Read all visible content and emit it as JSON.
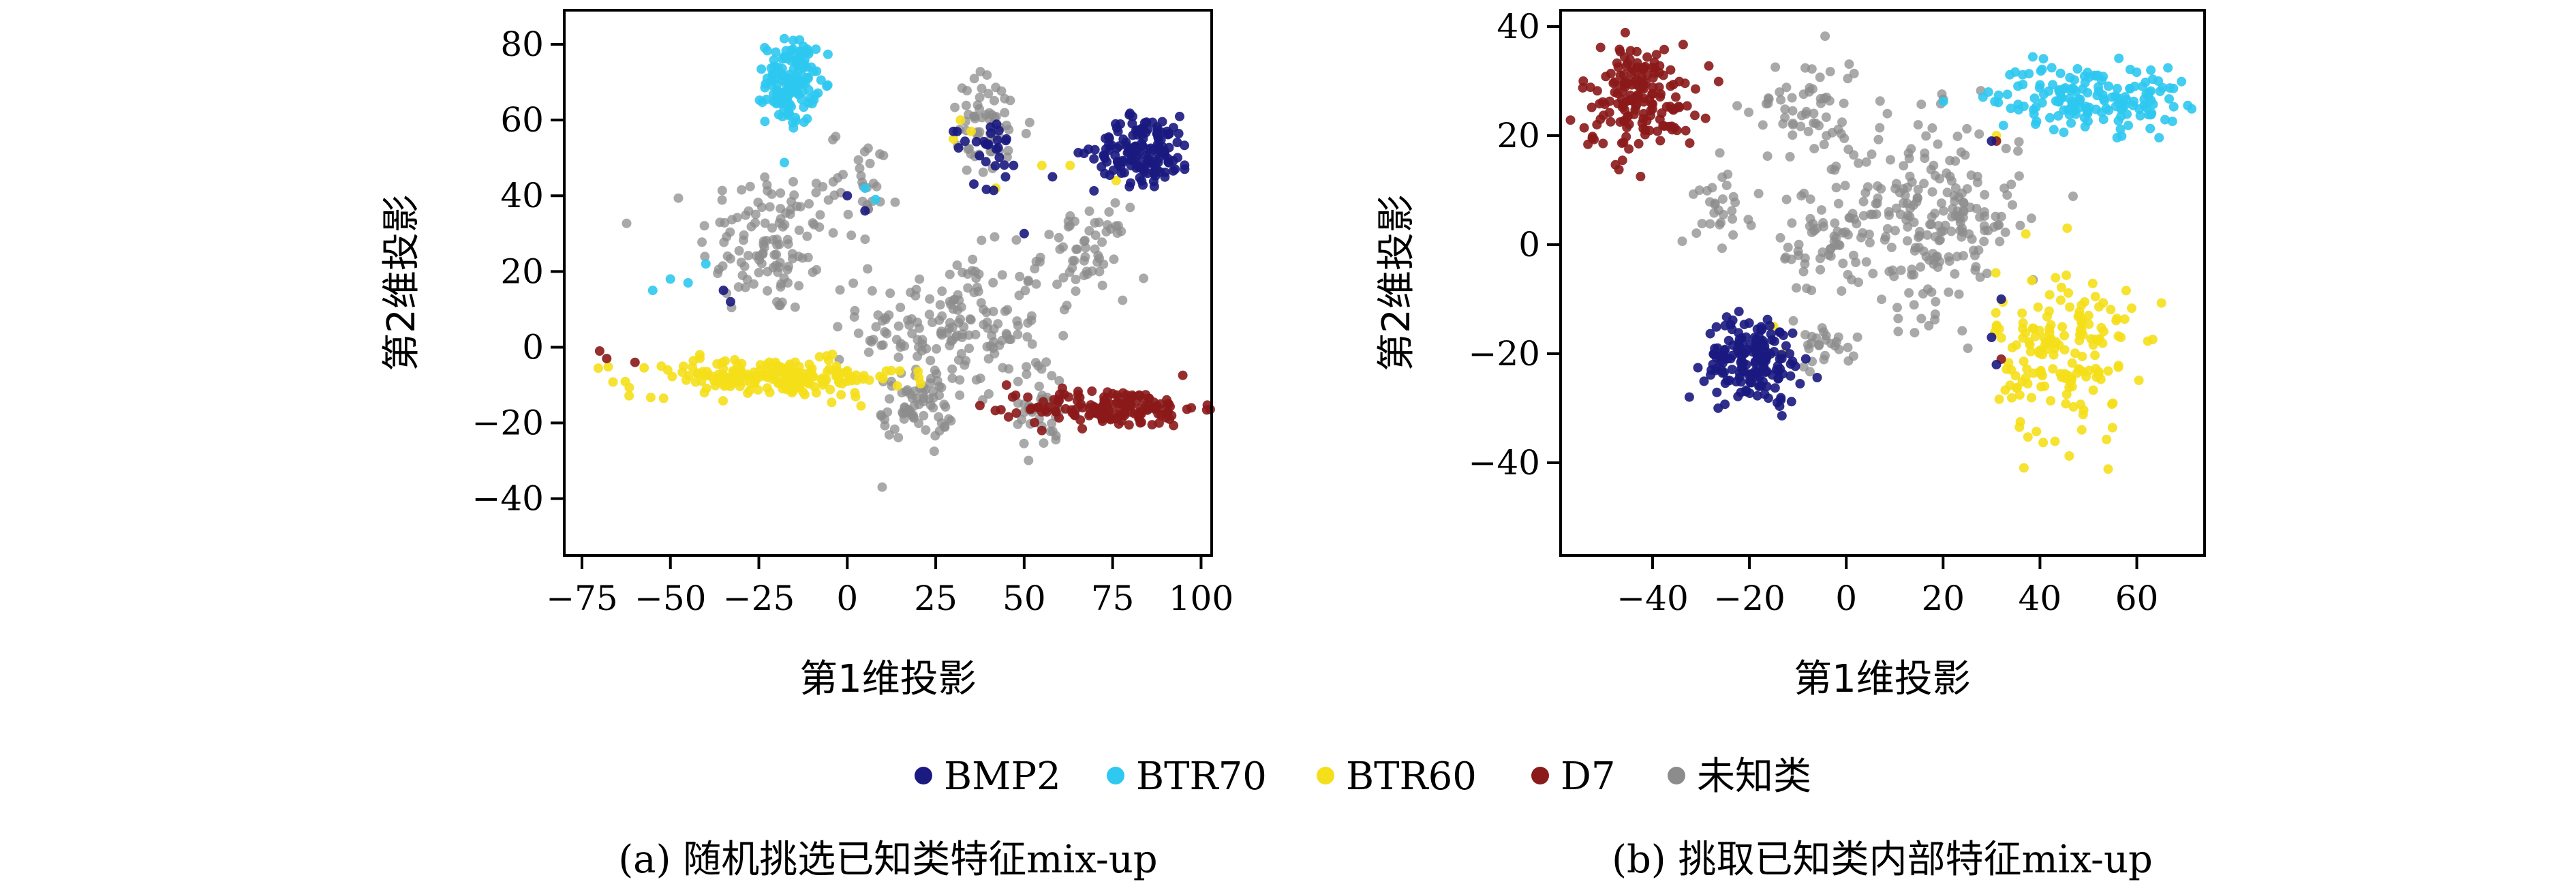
{
  "legend": [
    {
      "label": "BMP2",
      "color": "#1a1a80"
    },
    {
      "label": "BTR70",
      "color": "#2ec8f0"
    },
    {
      "label": "BTR60",
      "color": "#f5df1a"
    },
    {
      "label": "D7",
      "color": "#8b1a1a"
    },
    {
      "label": "未知类",
      "color": "#8c8c8c"
    }
  ],
  "chart_data": [
    {
      "type": "scatter",
      "caption": "(a) 随机挑选已知类特征mix-up",
      "xlabel": "第1维投影",
      "ylabel": "第2维投影",
      "xlim": [
        -80,
        103
      ],
      "ylim": [
        -55,
        89
      ],
      "xticks": [
        -75,
        -50,
        -25,
        0,
        25,
        50,
        75,
        100
      ],
      "yticks": [
        -40,
        -20,
        0,
        20,
        40,
        60,
        80
      ],
      "grid": false,
      "series": [
        {
          "name": "BMP2",
          "clusters": [
            {
              "cx": 84,
              "cy": 52,
              "sx": 7,
              "sy": 4.5,
              "n": 150
            },
            {
              "cx": 40,
              "cy": 53,
              "sx": 5,
              "sy": 5,
              "n": 25
            }
          ],
          "x": [
            -35,
            -33,
            0,
            5,
            30,
            45,
            47,
            50,
            58
          ],
          "y": [
            15,
            12,
            40,
            36,
            57,
            55,
            48,
            30,
            45
          ]
        },
        {
          "name": "BTR70",
          "clusters": [
            {
              "cx": -16,
              "cy": 70,
              "sx": 3.5,
              "sy": 5.5,
              "n": 140
            }
          ],
          "x": [
            -55,
            -50,
            -45,
            -40,
            5,
            8
          ],
          "y": [
            15,
            18,
            17,
            22,
            42,
            39
          ]
        },
        {
          "name": "BTR60",
          "clusters": [
            {
              "cx": -22,
              "cy": -8,
              "sx": 19,
              "sy": 2.5,
              "n": 200
            }
          ],
          "x": [
            32,
            35,
            42,
            55,
            63,
            76,
            30
          ],
          "y": [
            60,
            57,
            42,
            48,
            48,
            44,
            55
          ]
        },
        {
          "name": "D7",
          "clusters": [
            {
              "cx": 75,
              "cy": -16,
              "sx": 12,
              "sy": 2.5,
              "n": 160
            }
          ],
          "x": [
            -70,
            -68,
            -60,
            55,
            45
          ],
          "y": [
            -1,
            -3,
            -4,
            -22,
            -10
          ]
        },
        {
          "name": "未知类",
          "clusters": [
            {
              "cx": -22,
              "cy": 28,
              "sx": 10,
              "sy": 10,
              "n": 120
            },
            {
              "cx": 30,
              "cy": 5,
              "sx": 13,
              "sy": 10,
              "n": 170
            },
            {
              "cx": 55,
              "cy": -16,
              "sx": 5,
              "sy": 6,
              "n": 40
            },
            {
              "cx": 20,
              "cy": -16,
              "sx": 5,
              "sy": 4,
              "n": 60
            },
            {
              "cx": 67,
              "cy": 25,
              "sx": 6,
              "sy": 6,
              "n": 60
            },
            {
              "cx": 40,
              "cy": 58,
              "sx": 6,
              "sy": 7,
              "n": 60
            },
            {
              "cx": 5,
              "cy": 45,
              "sx": 5,
              "sy": 6,
              "n": 30
            }
          ],
          "x": [],
          "y": []
        }
      ]
    },
    {
      "type": "scatter",
      "caption": "(b) 挑取已知类内部特征mix-up",
      "xlabel": "第1维投影",
      "ylabel": "第2维投影",
      "xlim": [
        -59,
        74
      ],
      "ylim": [
        -57,
        43
      ],
      "xticks": [
        -40,
        -20,
        0,
        20,
        40,
        60
      ],
      "yticks": [
        -40,
        -20,
        0,
        20,
        40
      ],
      "grid": false,
      "series": [
        {
          "name": "BMP2",
          "clusters": [
            {
              "cx": -19,
              "cy": -21,
              "sx": 5,
              "sy": 4,
              "n": 170
            }
          ],
          "x": [
            32,
            30,
            31,
            30
          ],
          "y": [
            -10,
            -17,
            -22,
            19
          ]
        },
        {
          "name": "BTR70",
          "clusters": [
            {
              "cx": 50,
              "cy": 27,
              "sx": 10,
              "sy": 3,
              "n": 170
            }
          ],
          "x": [],
          "y": []
        },
        {
          "name": "BTR60",
          "clusters": [
            {
              "cx": 45,
              "cy": -20,
              "sx": 7,
              "sy": 8,
              "n": 170
            }
          ],
          "x": [
            -15,
            -13,
            31,
            31
          ],
          "y": [
            -15,
            -20,
            20,
            -15
          ]
        },
        {
          "name": "D7",
          "clusters": [
            {
              "cx": -43,
              "cy": 27,
              "sx": 6,
              "sy": 5,
              "n": 170
            }
          ],
          "x": [
            31,
            32
          ],
          "y": [
            19,
            -21
          ]
        },
        {
          "name": "未知类",
          "clusters": [
            {
              "cx": 18,
              "cy": 5,
              "sx": 9,
              "sy": 9,
              "n": 220
            },
            {
              "cx": -8,
              "cy": 25,
              "sx": 6,
              "sy": 5,
              "n": 60
            },
            {
              "cx": -25,
              "cy": 8,
              "sx": 3,
              "sy": 4,
              "n": 30
            },
            {
              "cx": -5,
              "cy": 0,
              "sx": 5,
              "sy": 6,
              "n": 60
            },
            {
              "cx": -4,
              "cy": -18,
              "sx": 3,
              "sy": 2,
              "n": 25
            }
          ],
          "x": [],
          "y": []
        }
      ]
    }
  ]
}
